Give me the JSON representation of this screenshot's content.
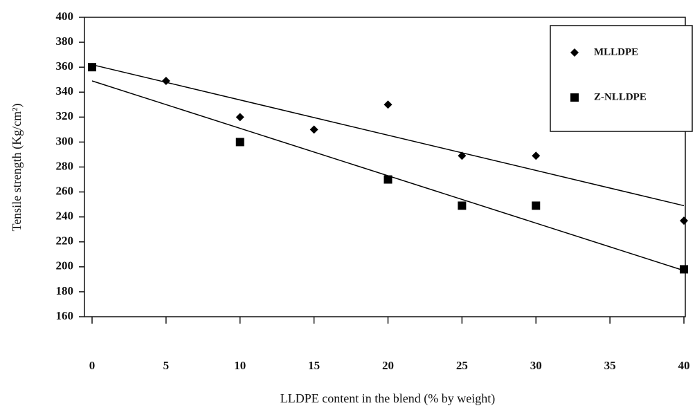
{
  "chart_data": {
    "type": "scatter",
    "xlabel": "LLDPE content in the blend (% by weight)",
    "ylabel": "Tensile strength (Kg/cm²)",
    "xlim": [
      0,
      40
    ],
    "xticks": [
      0,
      5,
      10,
      15,
      20,
      25,
      30,
      35,
      40
    ],
    "ylim": [
      160,
      400
    ],
    "yticks": [
      160,
      180,
      200,
      220,
      240,
      260,
      280,
      300,
      320,
      340,
      360,
      380,
      400
    ],
    "legend": "upper right",
    "series": [
      {
        "name": "MLLDPE",
        "color": "#000000",
        "marker": "diamond",
        "x": [
          0,
          5,
          10,
          15,
          20,
          25,
          30,
          40
        ],
        "values": [
          360,
          349,
          320,
          310,
          330,
          289,
          289,
          237
        ],
        "trendline": {
          "x": [
            0,
            40
          ],
          "values": [
            362,
            249
          ]
        }
      },
      {
        "name": "Z-NLLDPE",
        "color": "#000000",
        "marker": "square",
        "x": [
          0,
          10,
          20,
          25,
          30,
          40
        ],
        "values": [
          360,
          300,
          270,
          249,
          249,
          198
        ],
        "trendline": {
          "x": [
            0,
            40
          ],
          "values": [
            349,
            197
          ]
        }
      }
    ]
  }
}
